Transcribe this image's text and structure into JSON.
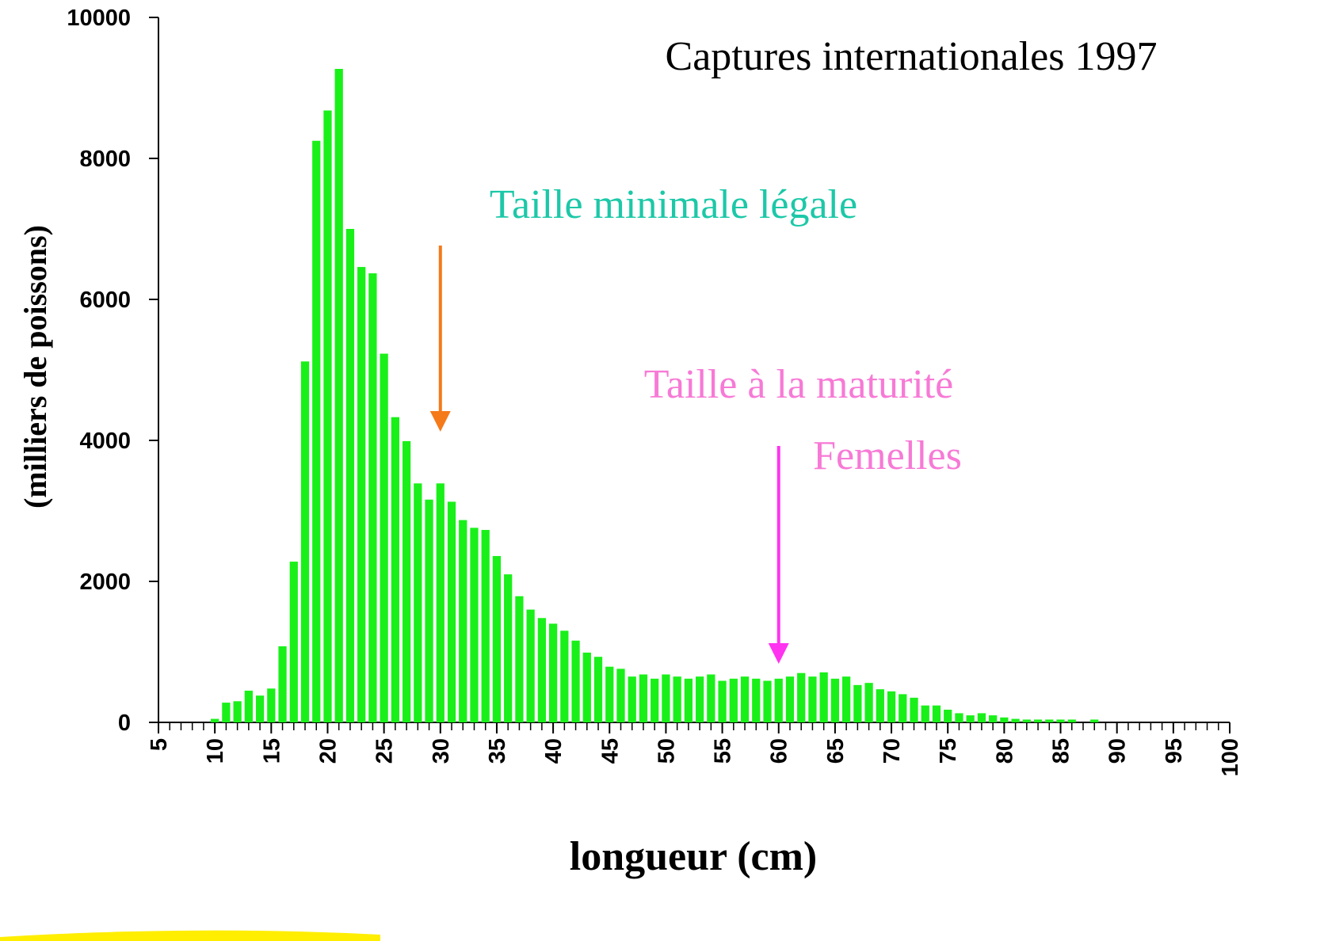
{
  "chart_data": {
    "type": "bar",
    "title": "Captures internationales 1997",
    "xlabel": "longueur (cm)",
    "ylabel": "(milliers de poissons)",
    "color": "#19f019",
    "x": [
      10,
      11,
      12,
      13,
      14,
      15,
      16,
      17,
      18,
      19,
      20,
      21,
      22,
      23,
      24,
      25,
      26,
      27,
      28,
      29,
      30,
      31,
      32,
      33,
      34,
      35,
      36,
      37,
      38,
      39,
      40,
      41,
      42,
      43,
      44,
      45,
      46,
      47,
      48,
      49,
      50,
      51,
      52,
      53,
      54,
      55,
      56,
      57,
      58,
      59,
      60,
      61,
      62,
      63,
      64,
      65,
      66,
      67,
      68,
      69,
      70,
      71,
      72,
      73,
      74,
      75,
      76,
      77,
      78,
      79,
      80,
      81,
      82,
      83,
      84,
      85,
      86,
      87,
      88
    ],
    "values": [
      50,
      280,
      300,
      450,
      380,
      480,
      1080,
      2280,
      5120,
      8250,
      8680,
      9270,
      7000,
      6460,
      6370,
      5230,
      4330,
      3990,
      3390,
      3160,
      3390,
      3130,
      2870,
      2760,
      2730,
      2360,
      2100,
      1790,
      1600,
      1480,
      1400,
      1300,
      1160,
      990,
      930,
      790,
      760,
      650,
      680,
      620,
      680,
      650,
      620,
      650,
      680,
      590,
      620,
      650,
      620,
      590,
      620,
      650,
      700,
      650,
      710,
      620,
      650,
      530,
      560,
      470,
      440,
      400,
      350,
      240,
      240,
      180,
      130,
      100,
      130,
      100,
      70,
      50,
      40,
      40,
      40,
      40,
      40,
      null,
      40
    ],
    "xlim": [
      5,
      100
    ],
    "xticks": [
      5,
      10,
      15,
      20,
      25,
      30,
      35,
      40,
      45,
      50,
      55,
      60,
      65,
      70,
      75,
      80,
      85,
      90,
      95,
      100
    ],
    "xminorticks": [
      5,
      6,
      7,
      8,
      9,
      10,
      11,
      12,
      13,
      14,
      15,
      16,
      17,
      18,
      19,
      20,
      21,
      22,
      23,
      24,
      25,
      26,
      27,
      28,
      29,
      30,
      31,
      32,
      33,
      34,
      35,
      36,
      37,
      38,
      39,
      40,
      41,
      42,
      43,
      44,
      45,
      46,
      47,
      48,
      49,
      50,
      51,
      52,
      53,
      54,
      55,
      56,
      57,
      58,
      59,
      60,
      61,
      62,
      63,
      64,
      65,
      66,
      67,
      68,
      69,
      70,
      71,
      72,
      73,
      74,
      75,
      76,
      77,
      78,
      79,
      80,
      81,
      82,
      83,
      84,
      85,
      86,
      87,
      88,
      89,
      90,
      91,
      92,
      93,
      94,
      95,
      96,
      97,
      98,
      99,
      100
    ],
    "ylim": [
      0,
      10000
    ],
    "yticks": [
      0,
      2000,
      4000,
      6000,
      8000,
      10000
    ],
    "annotations": [
      {
        "text": "Taille minimale légale",
        "x": 30,
        "color": "#1cc8a8",
        "arrow_color": "#f57a1a"
      },
      {
        "text": "Taille à la maturité",
        "subtext": "Femelles",
        "x": 60,
        "color": "#f77ad6",
        "arrow_color": "#ff33f0"
      }
    ]
  }
}
